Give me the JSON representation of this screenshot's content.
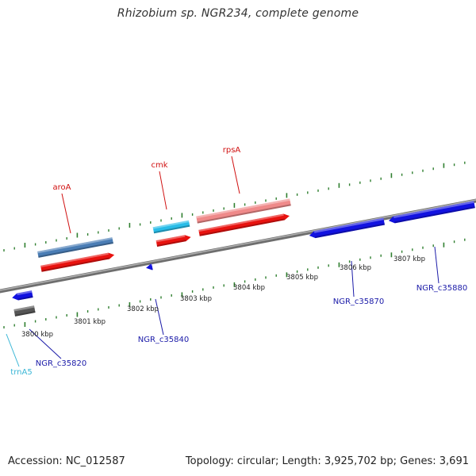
{
  "title": "Rhizobium sp. NGR234, complete genome",
  "footer": {
    "accession": "Accession: NC_012587",
    "summary": "Topology: circular; Length: 3,925,702 bp; Genes: 3,691"
  },
  "colors": {
    "backbone": "#808080",
    "ruler": "#2f7f2f",
    "red_gene": "#e8120f",
    "blue_gene": "#1212e0",
    "steel_gene": "#4a7db5",
    "cyan_gene": "#29bde8",
    "pink_gene": "#ef8a8a",
    "gray_gene": "#555555",
    "red_label": "#d01010",
    "blue_label": "#1a1aa8",
    "cyan_label": "#3ab6d6"
  },
  "ruler_ticks": [
    {
      "label": "3800 kbp"
    },
    {
      "label": "3801 kbp"
    },
    {
      "label": "3802 kbp"
    },
    {
      "label": "3803 kbp"
    },
    {
      "label": "3804 kbp"
    },
    {
      "label": "3805 kbp"
    },
    {
      "label": "3806 kbp"
    },
    {
      "label": "3807 kbp"
    }
  ],
  "gene_labels": [
    {
      "text": "aroA",
      "color": "red"
    },
    {
      "text": "cmk",
      "color": "red"
    },
    {
      "text": "rpsA",
      "color": "red"
    },
    {
      "text": "NGR_c35820",
      "color": "blue"
    },
    {
      "text": "NGR_c35840",
      "color": "blue"
    },
    {
      "text": "NGR_c35870",
      "color": "blue"
    },
    {
      "text": "NGR_c35880",
      "color": "blue"
    },
    {
      "text": "trnA5",
      "color": "cyan"
    }
  ]
}
